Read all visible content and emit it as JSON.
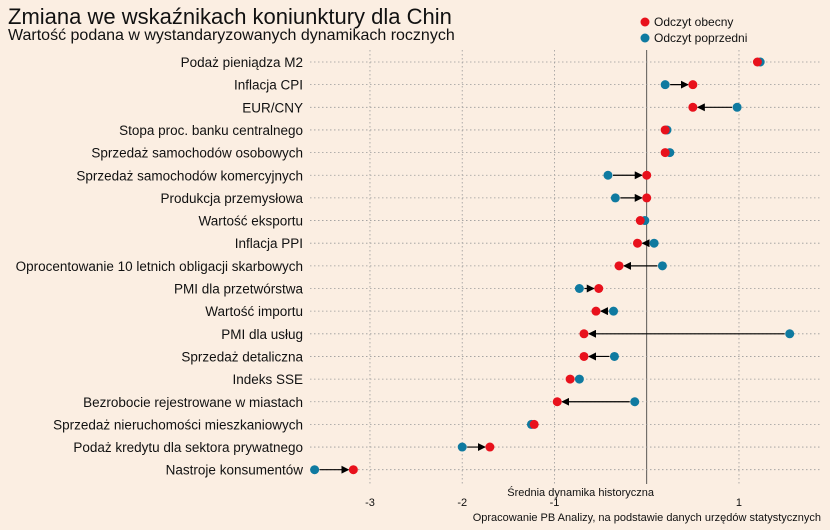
{
  "header": {
    "title": "Zmiana we wskaźnikach koniunktury dla Chin",
    "subtitle": "Wartość podana w wystandaryzowanych dynamikach rocznych"
  },
  "colors": {
    "current": "#e8111c",
    "previous": "#0f7aa0",
    "background": "#fbeee2",
    "grid": "#9a9a9a",
    "arrow": "#000000"
  },
  "chart_data": {
    "type": "dumbbell",
    "title": "Zmiana we wskaźnikach koniunktury dla Chin",
    "subtitle": "Wartość podana w wystandaryzowanych dynamikach rocznych",
    "xlabel": "Średnia dynamika historyczna",
    "ylabel": "",
    "xlim": [
      -3.65,
      1.9
    ],
    "x_ticks": [
      -3,
      -2,
      -1,
      1
    ],
    "grid": true,
    "legend_position": "top-right",
    "reference_line_x": 0,
    "source_note": "Opracowanie  PB Analizy, na podstawie danych urzędów statystycznych",
    "series": [
      {
        "name": "Odczyt obecny",
        "key": "current"
      },
      {
        "name": "Odczyt poprzedni",
        "key": "previous"
      }
    ],
    "categories": [
      "Podaż pieniądza M2",
      "Inflacja CPI",
      "EUR/CNY",
      "Stopa proc. banku centralnego",
      "Sprzedaż samochodów osobowych",
      "Sprzedaż samochodów komercyjnych",
      "Produkcja przemysłowa",
      "Wartość eksportu",
      "Inflacja PPI",
      "Oprocentowanie 10 letnich obligacji skarbowych",
      "PMI dla przetwórstwa",
      "Wartość importu",
      "PMI dla usług",
      "Sprzedaż detaliczna",
      "Indeks SSE",
      "Bezrobocie rejestrowane w miastach",
      "Sprzedaż nieruchomości mieszkaniowych",
      "Podaż kredytu dla sektora prywatnego",
      "Nastroje konsumentów"
    ],
    "current": [
      1.2,
      0.5,
      0.5,
      0.2,
      0.2,
      0.0,
      0.0,
      -0.07,
      -0.1,
      -0.3,
      -0.52,
      -0.55,
      -0.68,
      -0.68,
      -0.83,
      -0.97,
      -1.22,
      -1.7,
      -3.18
    ],
    "previous": [
      1.23,
      0.2,
      0.98,
      0.22,
      0.25,
      -0.42,
      -0.34,
      -0.02,
      0.08,
      0.17,
      -0.73,
      -0.36,
      1.55,
      -0.35,
      -0.73,
      -0.13,
      -1.25,
      -2.0,
      -3.6
    ]
  }
}
